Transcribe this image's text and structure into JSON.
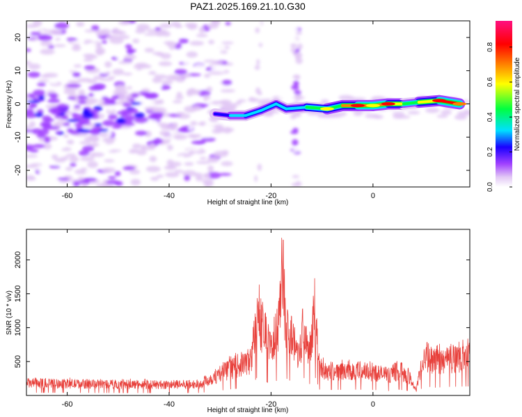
{
  "chart_data": [
    {
      "type": "heatmap",
      "title": "PAZ1.2025.169.21.10.G30",
      "xlabel": "Height of straight line (km)",
      "ylabel": "Frequency (Hz)",
      "xlim": [
        -68,
        19
      ],
      "ylim": [
        -25,
        25
      ],
      "x_ticks": [
        -60,
        -40,
        -20,
        0
      ],
      "y_ticks": [
        -20,
        -10,
        0,
        10,
        20
      ],
      "grid": false,
      "colorbar": {
        "label": "Normalized spectral amplitude",
        "range": [
          0,
          0.95
        ],
        "ticks": [
          "0.0",
          "0.2",
          "0.4",
          "0.6",
          "0.8"
        ],
        "tick_values": [
          0,
          0.2,
          0.4,
          0.6,
          0.8
        ],
        "colors": [
          "#ffffff",
          "#e2c8f5",
          "#a040ff",
          "#1a00ff",
          "#00e0ff",
          "#00ff40",
          "#ffff00",
          "#ff7f00",
          "#ff0000",
          "#ff1080"
        ]
      },
      "ridge": [
        {
          "x": -31,
          "y": -3,
          "v": 0.22
        },
        {
          "x": -28,
          "y": -3.5,
          "v": 0.3
        },
        {
          "x": -25,
          "y": -3.5,
          "v": 0.35
        },
        {
          "x": -22,
          "y": -2,
          "v": 0.4
        },
        {
          "x": -19,
          "y": 0,
          "v": 0.3
        },
        {
          "x": -17,
          "y": -1.5,
          "v": 0.38
        },
        {
          "x": -13,
          "y": -1,
          "v": 0.4
        },
        {
          "x": -9,
          "y": -1.5,
          "v": 0.65
        },
        {
          "x": -6,
          "y": -0.5,
          "v": 0.5
        },
        {
          "x": -3,
          "y": -0.5,
          "v": 0.92
        },
        {
          "x": 0,
          "y": -0.5,
          "v": 0.6
        },
        {
          "x": 3,
          "y": 0,
          "v": 0.88
        },
        {
          "x": 6,
          "y": 0,
          "v": 0.5
        },
        {
          "x": 9,
          "y": 0.5,
          "v": 0.45
        },
        {
          "x": 13,
          "y": 1,
          "v": 0.9
        },
        {
          "x": 17,
          "y": 0,
          "v": 0.75
        }
      ]
    },
    {
      "type": "line",
      "xlabel": "Height of straight line (km)",
      "ylabel": "SNR (10 * v/v)",
      "xlim": [
        -68,
        19
      ],
      "ylim": [
        0,
        2450
      ],
      "x_ticks": [
        -60,
        -40,
        -20,
        0
      ],
      "y_ticks": [
        500,
        1000,
        1500,
        2000
      ],
      "grid": false,
      "line_color": "#e8413c",
      "envelope": [
        {
          "x": -68,
          "y": 240
        },
        {
          "x": -60,
          "y": 230
        },
        {
          "x": -50,
          "y": 220
        },
        {
          "x": -40,
          "y": 210
        },
        {
          "x": -34,
          "y": 220
        },
        {
          "x": -30,
          "y": 420
        },
        {
          "x": -27,
          "y": 560
        },
        {
          "x": -24,
          "y": 680
        },
        {
          "x": -22.5,
          "y": 1650
        },
        {
          "x": -21.5,
          "y": 1250
        },
        {
          "x": -20,
          "y": 900
        },
        {
          "x": -18.5,
          "y": 1350
        },
        {
          "x": -17.8,
          "y": 2400
        },
        {
          "x": -17,
          "y": 1400
        },
        {
          "x": -16,
          "y": 1150
        },
        {
          "x": -14.5,
          "y": 800
        },
        {
          "x": -13.5,
          "y": 1450
        },
        {
          "x": -12.5,
          "y": 900
        },
        {
          "x": -11.5,
          "y": 1700
        },
        {
          "x": -10.5,
          "y": 500
        },
        {
          "x": -8,
          "y": 470
        },
        {
          "x": -4,
          "y": 490
        },
        {
          "x": 0,
          "y": 470
        },
        {
          "x": 3,
          "y": 380
        },
        {
          "x": 5,
          "y": 500
        },
        {
          "x": 7,
          "y": 380
        },
        {
          "x": 8.5,
          "y": 100
        },
        {
          "x": 10,
          "y": 800
        },
        {
          "x": 12,
          "y": 650
        },
        {
          "x": 15,
          "y": 720
        },
        {
          "x": 19,
          "y": 760
        }
      ]
    }
  ]
}
